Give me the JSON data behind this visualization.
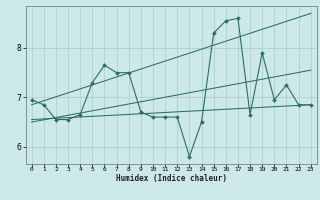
{
  "title": "",
  "xlabel": "Humidex (Indice chaleur)",
  "bg_color": "#cce8e8",
  "grid_color": "#aacccc",
  "line_color": "#2a7060",
  "xlim": [
    -0.5,
    23.5
  ],
  "ylim": [
    5.65,
    8.85
  ],
  "yticks": [
    6,
    7,
    8
  ],
  "xticks": [
    0,
    1,
    2,
    3,
    4,
    5,
    6,
    7,
    8,
    9,
    10,
    11,
    12,
    13,
    14,
    15,
    16,
    17,
    18,
    19,
    20,
    21,
    22,
    23
  ],
  "series": {
    "main": {
      "x": [
        0,
        1,
        2,
        3,
        4,
        5,
        6,
        7,
        8,
        9,
        10,
        11,
        12,
        13,
        14,
        15,
        16,
        17,
        18,
        19,
        20,
        21,
        22,
        23
      ],
      "y": [
        6.95,
        6.85,
        6.55,
        6.55,
        6.65,
        7.3,
        7.65,
        7.5,
        7.5,
        6.7,
        6.6,
        6.6,
        6.6,
        5.8,
        6.5,
        8.3,
        8.55,
        8.6,
        6.65,
        7.9,
        6.95,
        7.25,
        6.85,
        6.85
      ]
    },
    "trend1": {
      "x": [
        0,
        23
      ],
      "y": [
        6.85,
        8.7
      ]
    },
    "trend2": {
      "x": [
        0,
        23
      ],
      "y": [
        6.55,
        6.85
      ]
    },
    "trend3": {
      "x": [
        0,
        23
      ],
      "y": [
        6.5,
        7.55
      ]
    }
  }
}
